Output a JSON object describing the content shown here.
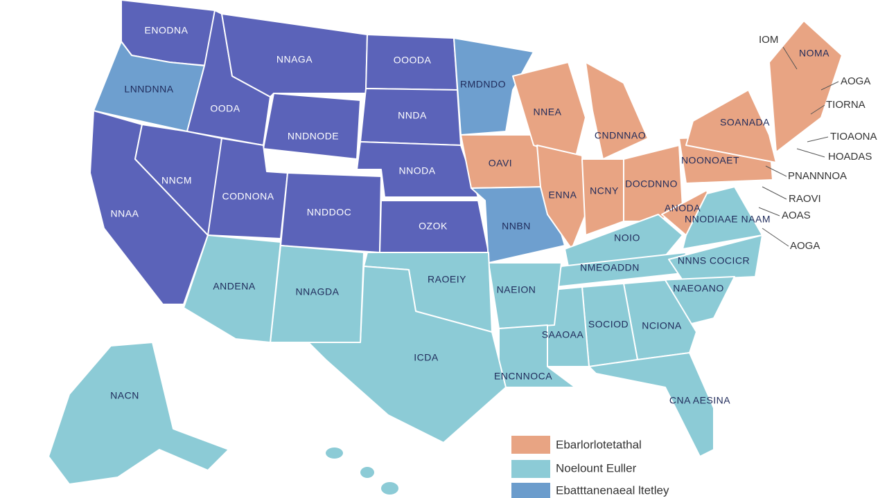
{
  "states": [
    {
      "label": "ENODNA"
    },
    {
      "label": "LNNDNNA"
    },
    {
      "label": "OODA"
    },
    {
      "label": "NNAGA"
    },
    {
      "label": "OOODA"
    },
    {
      "label": "NNDA"
    },
    {
      "label": "NNDNODE"
    },
    {
      "label": "NNODA"
    },
    {
      "label": "NNAA"
    },
    {
      "label": "NNCM"
    },
    {
      "label": "CODNONA"
    },
    {
      "label": "NNDDOC"
    },
    {
      "label": "OZOK"
    },
    {
      "label": "RMDNDO"
    },
    {
      "label": "OAVI"
    },
    {
      "label": "NNBN"
    },
    {
      "label": "NNEA"
    },
    {
      "label": "ENNA"
    },
    {
      "label": "CNDNNAO"
    },
    {
      "label": "NCNY"
    },
    {
      "label": "DOCDNNO"
    },
    {
      "label": "NOONOAET"
    },
    {
      "label": "SOANADA"
    },
    {
      "label": "NOMA"
    },
    {
      "label": "ANODA"
    },
    {
      "label": "NNODIAAE NAAM"
    },
    {
      "label": "NOIO"
    },
    {
      "label": "NMEOADDN"
    },
    {
      "label": "NNNS COCICR"
    },
    {
      "label": "NAEOANO"
    },
    {
      "label": "NCIONA"
    },
    {
      "label": "SOCIOD"
    },
    {
      "label": "SAAOAA"
    },
    {
      "label": "NAEION"
    },
    {
      "label": "ENCNNOCA"
    },
    {
      "label": "RAOEIY"
    },
    {
      "label": "ICDA"
    },
    {
      "label": "NNAGDA"
    },
    {
      "label": "ANDENA"
    },
    {
      "label": "CNA AESINA"
    },
    {
      "label": "NACN"
    }
  ],
  "callouts": [
    {
      "label": "IOM"
    },
    {
      "label": "AOGA"
    },
    {
      "label": "TIORNA"
    },
    {
      "label": "TIOAONA"
    },
    {
      "label": "HOADAS"
    },
    {
      "label": "PNANNNOA"
    },
    {
      "label": "RAOVI"
    },
    {
      "label": "AOAS"
    },
    {
      "label": "AOGA"
    }
  ],
  "legend": [
    {
      "label": "Ebarlorlotetathal"
    },
    {
      "label": "Noelount Euller"
    },
    {
      "label": "Ebatttanenaeal ltetley"
    }
  ]
}
